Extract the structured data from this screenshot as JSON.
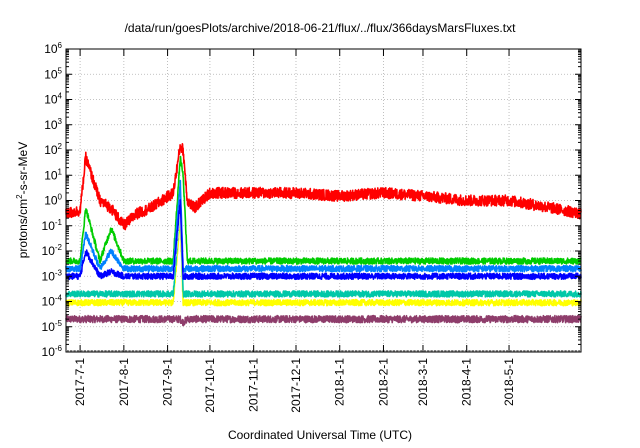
{
  "chart_data": {
    "type": "line",
    "title": "/data/run/goesPlots/archive/2018-06-21/flux/../flux/366daysMarsFluxes.txt",
    "xlabel": "Coordinated Universal Time (UTC)",
    "ylabel": {
      "prefix": "protons/cm",
      "sup": "2",
      "suffix": "-s-sr-MeV"
    },
    "ylog": true,
    "ylim": [
      1e-06,
      1000000.0
    ],
    "xlim": [
      "2017-06-21",
      "2018-06-21"
    ],
    "grid": true,
    "y_ticks": [
      {
        "value": -6,
        "base": "10",
        "exp": "-6"
      },
      {
        "value": -5,
        "base": "10",
        "exp": "-5"
      },
      {
        "value": -4,
        "base": "10",
        "exp": "-4"
      },
      {
        "value": -3,
        "base": "10",
        "exp": "-3"
      },
      {
        "value": -2,
        "base": "10",
        "exp": "-2"
      },
      {
        "value": -1,
        "base": "10",
        "exp": "-1"
      },
      {
        "value": 0,
        "base": "10",
        "exp": "0"
      },
      {
        "value": 1,
        "base": "10",
        "exp": "1"
      },
      {
        "value": 2,
        "base": "10",
        "exp": "2"
      },
      {
        "value": 3,
        "base": "10",
        "exp": "3"
      },
      {
        "value": 4,
        "base": "10",
        "exp": "4"
      },
      {
        "value": 5,
        "base": "10",
        "exp": "5"
      },
      {
        "value": 6,
        "base": "10",
        "exp": "6"
      }
    ],
    "x_ticks": [
      {
        "date": "2017-07-01",
        "label": "2017-7-1"
      },
      {
        "date": "2017-08-01",
        "label": "2017-8-1"
      },
      {
        "date": "2017-09-01",
        "label": "2017-9-1"
      },
      {
        "date": "2017-10-01",
        "label": "2017-10-1"
      },
      {
        "date": "2017-11-01",
        "label": "2017-11-1"
      },
      {
        "date": "2017-12-01",
        "label": "2017-12-1"
      },
      {
        "date": "2018-01-01",
        "label": "2018-1-1"
      },
      {
        "date": "2018-02-01",
        "label": "2018-2-1"
      },
      {
        "date": "2018-03-01",
        "label": "2018-3-1"
      },
      {
        "date": "2018-04-01",
        "label": "2018-4-1"
      },
      {
        "date": "2018-05-01",
        "label": "2018-5-1"
      }
    ],
    "series": [
      {
        "color": "#8e3d6b",
        "x": [
          "2017-06-21",
          "2017-07-01",
          "2017-07-05",
          "2017-07-15",
          "2017-07-23",
          "2017-08-01",
          "2017-08-20",
          "2017-09-05",
          "2017-09-10",
          "2017-09-12",
          "2017-09-15",
          "2017-10-01",
          "2018-06-21"
        ],
        "y": [
          2e-05,
          2e-05,
          2e-05,
          2e-05,
          2e-05,
          2e-05,
          2e-05,
          2e-05,
          2e-05,
          1.5e-05,
          2e-05,
          2e-05,
          2e-05
        ]
      },
      {
        "color": "#ffff00",
        "x": [
          "2017-06-21",
          "2017-07-01",
          "2017-07-05",
          "2017-07-15",
          "2017-07-23",
          "2017-08-01",
          "2017-08-20",
          "2017-09-05",
          "2017-09-10",
          "2017-09-12",
          "2017-09-15",
          "2017-10-01",
          "2018-06-21"
        ],
        "y": [
          9e-05,
          9e-05,
          9e-05,
          9e-05,
          9e-05,
          9e-05,
          9e-05,
          9e-05,
          0.2,
          9e-05,
          9e-05,
          9e-05,
          9e-05
        ]
      },
      {
        "color": "#00c8a8",
        "x": [
          "2017-06-21",
          "2017-07-01",
          "2017-07-05",
          "2017-07-15",
          "2017-07-23",
          "2017-08-01",
          "2017-08-20",
          "2017-09-05",
          "2017-09-10",
          "2017-09-12",
          "2017-09-15",
          "2017-10-01",
          "2018-06-21"
        ],
        "y": [
          0.0002,
          0.0002,
          0.0002,
          0.0002,
          0.0002,
          0.0002,
          0.0002,
          0.0002,
          0.5,
          0.0002,
          0.0002,
          0.0002,
          0.0002
        ]
      },
      {
        "color": "#00cc00",
        "x": [
          "2017-06-21",
          "2017-07-01",
          "2017-07-05",
          "2017-07-15",
          "2017-07-23",
          "2017-08-01",
          "2017-08-20",
          "2017-09-05",
          "2017-09-10",
          "2017-09-12",
          "2017-09-15",
          "2017-10-01",
          "2018-06-21"
        ],
        "y": [
          0.004,
          0.004,
          0.5,
          0.004,
          0.08,
          0.004,
          0.004,
          0.004,
          50,
          10,
          0.004,
          0.004,
          0.004
        ]
      },
      {
        "color": "#ffffff",
        "x": [
          "2017-06-21",
          "2017-07-01",
          "2017-07-05",
          "2017-07-15",
          "2017-07-23",
          "2017-08-01",
          "2017-08-20",
          "2017-09-05",
          "2017-09-10",
          "2017-09-12",
          "2017-09-15",
          "2017-10-01",
          "2018-06-21"
        ],
        "y": [
          0.0008,
          0.0008,
          0.002,
          0.0008,
          0.0015,
          0.0008,
          0.0008,
          0.0008,
          0.5,
          0.0008,
          0.0008,
          0.0008,
          0.0008
        ]
      },
      {
        "color": "#0080ff",
        "x": [
          "2017-06-21",
          "2017-07-01",
          "2017-07-05",
          "2017-07-15",
          "2017-07-23",
          "2017-08-01",
          "2017-08-20",
          "2017-09-05",
          "2017-09-10",
          "2017-09-12",
          "2017-09-15",
          "2017-10-01",
          "2018-06-21"
        ],
        "y": [
          0.002,
          0.002,
          0.05,
          0.002,
          0.01,
          0.002,
          0.002,
          0.002,
          5,
          0.002,
          0.002,
          0.002,
          0.002
        ]
      },
      {
        "color": "#0000ff",
        "x": [
          "2017-06-21",
          "2017-07-01",
          "2017-07-05",
          "2017-07-15",
          "2017-07-23",
          "2017-08-01",
          "2017-08-20",
          "2017-09-05",
          "2017-09-10",
          "2017-09-12",
          "2017-09-15",
          "2017-10-01",
          "2018-06-21"
        ],
        "y": [
          0.001,
          0.001,
          0.01,
          0.001,
          0.0015,
          0.001,
          0.001,
          0.001,
          1,
          0.001,
          0.001,
          0.001,
          0.001
        ]
      },
      {
        "color": "#ff0000",
        "x": [
          "2017-06-21",
          "2017-07-01",
          "2017-07-05",
          "2017-07-15",
          "2017-07-23",
          "2017-08-01",
          "2017-08-10",
          "2017-08-20",
          "2017-09-05",
          "2017-09-10",
          "2017-09-12",
          "2017-09-15",
          "2017-09-20",
          "2017-10-01",
          "2017-11-01",
          "2017-12-01",
          "2018-01-01",
          "2018-02-01",
          "2018-03-01",
          "2018-04-01",
          "2018-05-01",
          "2018-06-01",
          "2018-06-21"
        ],
        "y": [
          0.3,
          0.4,
          50,
          1,
          0.5,
          0.1,
          0.3,
          0.5,
          2,
          150,
          100,
          1,
          0.5,
          2,
          2,
          2,
          1.5,
          2,
          1.5,
          1,
          1,
          0.5,
          0.3
        ]
      }
    ]
  }
}
